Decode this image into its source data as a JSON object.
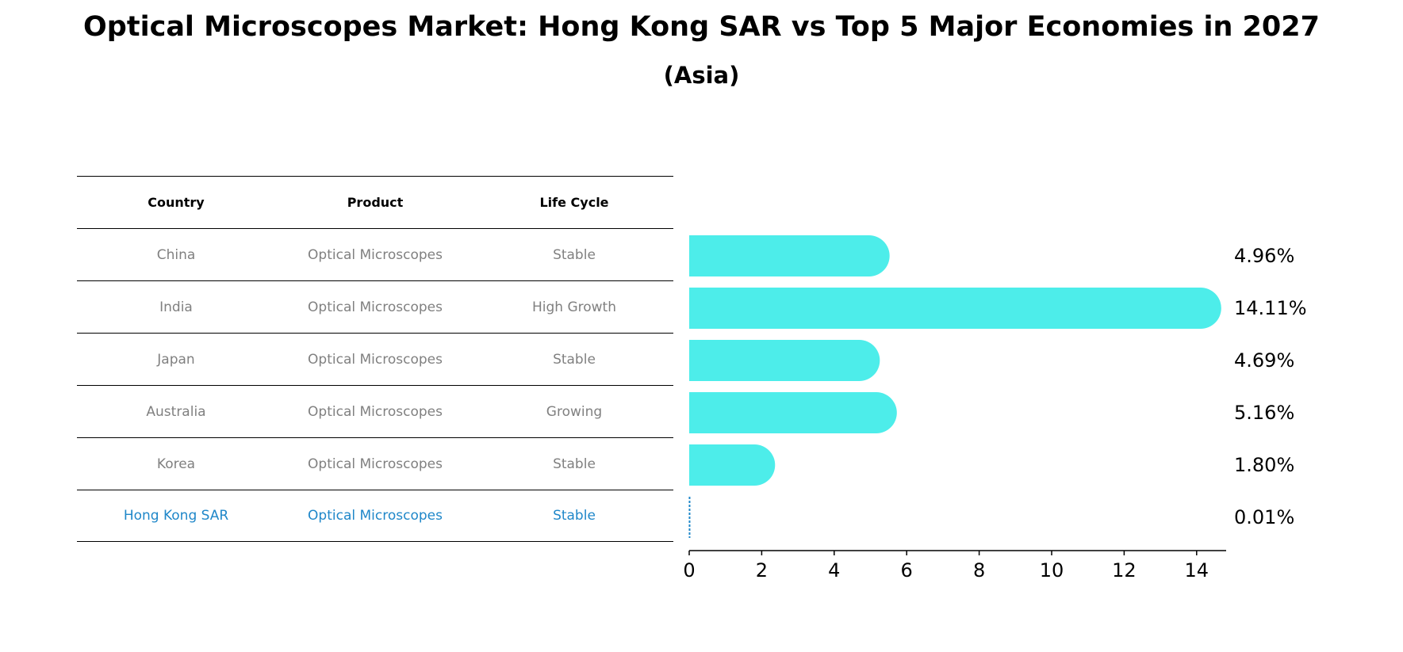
{
  "title": "Optical Microscopes Market: Hong Kong SAR vs Top 5 Major Economies in 2027",
  "subtitle": "(Asia)",
  "table": {
    "headers": [
      "Country",
      "Product",
      "Life Cycle"
    ],
    "rows": [
      [
        "China",
        "Optical Microscopes",
        "Stable"
      ],
      [
        "India",
        "Optical Microscopes",
        "High Growth"
      ],
      [
        "Japan",
        "Optical Microscopes",
        "Stable"
      ],
      [
        "Australia",
        "Optical Microscopes",
        "Growing"
      ],
      [
        "Korea",
        "Optical Microscopes",
        "Stable"
      ],
      [
        "Hong Kong SAR",
        "Optical Microscopes",
        "Stable"
      ]
    ]
  },
  "chart_data": {
    "type": "bar",
    "orientation": "horizontal",
    "categories": [
      "China",
      "India",
      "Japan",
      "Australia",
      "Korea",
      "Hong Kong SAR"
    ],
    "values": [
      4.96,
      14.11,
      4.69,
      5.16,
      1.8,
      0.01
    ],
    "value_labels": [
      "4.96%",
      "14.11%",
      "4.69%",
      "5.16%",
      "1.80%",
      "0.01%"
    ],
    "xlim": [
      0,
      14.8
    ],
    "xticks": [
      0,
      2,
      4,
      6,
      8,
      10,
      12,
      14
    ],
    "xlabel": "",
    "ylabel": "",
    "grid": false,
    "colors": {
      "bar": "#4dedea",
      "highlight": "#1f87c9",
      "axis": "#000000"
    }
  }
}
